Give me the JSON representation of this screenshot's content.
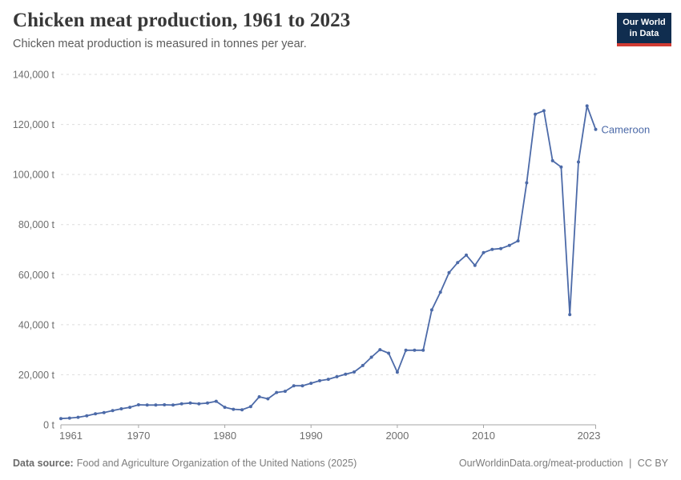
{
  "header": {
    "title": "Chicken meat production, 1961 to 2023",
    "subtitle": "Chicken meat production is measured in tonnes per year."
  },
  "logo": {
    "line1": "Our World",
    "line2": "in Data"
  },
  "chart_data": {
    "type": "line",
    "title": "Chicken meat production, 1961 to 2023",
    "unit": "t",
    "xlabel": "",
    "ylabel": "tonnes",
    "xlim": [
      1961,
      2023
    ],
    "ylim": [
      0,
      140000
    ],
    "x_ticks": [
      1961,
      1970,
      1980,
      1990,
      2000,
      2010,
      2023
    ],
    "y_ticks": [
      0,
      20000,
      40000,
      60000,
      80000,
      100000,
      120000,
      140000
    ],
    "grid": "horizontal-dashed",
    "legend_position": "end-of-line-label",
    "years": [
      1961,
      1962,
      1963,
      1964,
      1965,
      1966,
      1967,
      1968,
      1969,
      1970,
      1971,
      1972,
      1973,
      1974,
      1975,
      1976,
      1977,
      1978,
      1979,
      1980,
      1981,
      1982,
      1983,
      1984,
      1985,
      1986,
      1987,
      1988,
      1989,
      1990,
      1991,
      1992,
      1993,
      1994,
      1995,
      1996,
      1997,
      1998,
      1999,
      2000,
      2001,
      2002,
      2003,
      2004,
      2005,
      2006,
      2007,
      2008,
      2009,
      2010,
      2011,
      2012,
      2013,
      2014,
      2015,
      2016,
      2017,
      2018,
      2019,
      2020,
      2021,
      2022,
      2023
    ],
    "series": [
      {
        "name": "Cameroon",
        "color": "#4c6aa8",
        "values": [
          2500,
          2700,
          3000,
          3600,
          4400,
          4900,
          5700,
          6400,
          7000,
          8000,
          7900,
          7900,
          8000,
          7900,
          8400,
          8700,
          8400,
          8700,
          9400,
          7000,
          6200,
          6000,
          7300,
          11200,
          10400,
          12900,
          13400,
          15600,
          15600,
          16600,
          17600,
          18200,
          19200,
          20200,
          21100,
          23700,
          27000,
          30000,
          28600,
          21000,
          29800,
          29800,
          29800,
          45900,
          53000,
          60800,
          64800,
          67800,
          63700,
          68800,
          70100,
          70400,
          71700,
          73500,
          96700,
          124100,
          125500,
          105500,
          103000,
          44000,
          105000,
          127400,
          118000
        ]
      }
    ]
  },
  "footer": {
    "source_label": "Data source:",
    "source_text": "Food and Agriculture Organization of the United Nations (2025)",
    "link_text": "OurWorldinData.org/meat-production",
    "separator": "|",
    "license_text": "CC BY"
  },
  "colors": {
    "line": "#4c6aa8",
    "grid": "#dedede",
    "axis": "#a6a6a6",
    "tick_text": "#6e6e6e",
    "logo_bg": "#102d4f",
    "logo_accent": "#d13b33"
  }
}
